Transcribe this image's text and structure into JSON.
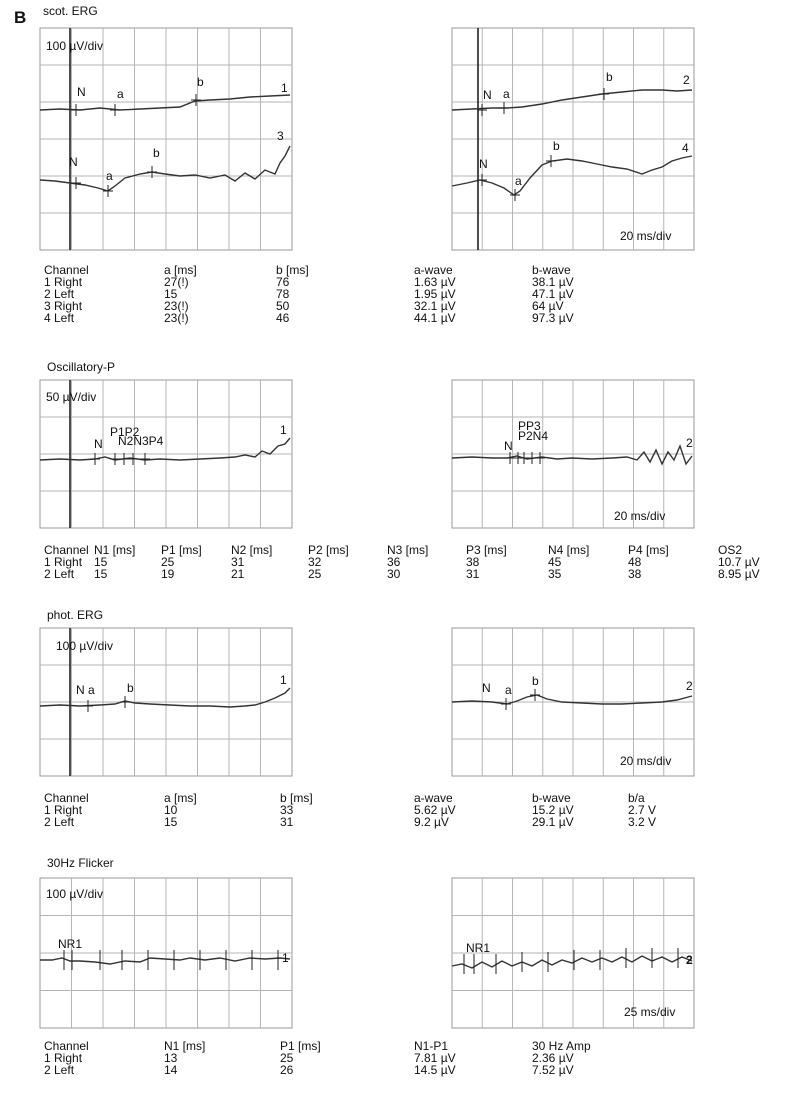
{
  "figure": {
    "panel_label": "B"
  },
  "sections": [
    {
      "title": "scot. ERG",
      "scale_left": "100 µV/div",
      "scale_right": "20 ms/div"
    },
    {
      "title": "Oscillatory-P",
      "scale_left": "50 µV/div",
      "scale_right": "20 ms/div"
    },
    {
      "title": "phot. ERG",
      "scale_left": "100 µV/div",
      "scale_right": "20 ms/div"
    },
    {
      "title": "30Hz Flicker",
      "scale_left": "100 µV/div",
      "scale_right": "25 ms/div"
    }
  ],
  "chart_data": [
    {
      "type": "line",
      "title": "scot. ERG",
      "grid": true,
      "plots": [
        {
          "side": "left",
          "traces": [
            {
              "name": "1",
              "markers": [
                "N",
                "a",
                "b"
              ]
            },
            {
              "name": "3",
              "markers": [
                "N",
                "a",
                "b"
              ]
            }
          ]
        },
        {
          "side": "right",
          "traces": [
            {
              "name": "2",
              "markers": [
                "N",
                "a",
                "b"
              ]
            },
            {
              "name": "4",
              "markers": [
                "N",
                "a",
                "b"
              ]
            }
          ]
        }
      ],
      "table": {
        "columns": [
          "Channel",
          "a [ms]",
          "b [ms]",
          "a-wave",
          "b-wave"
        ],
        "rows": [
          [
            "1 Right",
            "27(!)",
            "76",
            "1.63 µV",
            "38.1 µV"
          ],
          [
            "2 Left",
            "15",
            "78",
            "1.95 µV",
            "47.1 µV"
          ],
          [
            "3 Right",
            "23(!)",
            "50",
            "32.1 µV",
            "64 µV"
          ],
          [
            "4 Left",
            "23(!)",
            "46",
            "44.1 µV",
            "97.3 µV"
          ]
        ]
      }
    },
    {
      "type": "line",
      "title": "Oscillatory-P",
      "grid": true,
      "plots": [
        {
          "side": "left",
          "traces": [
            {
              "name": "1",
              "markers": [
                "N",
                "P1",
                "N2",
                "P2",
                "N3",
                "P3",
                "N4",
                "P4"
              ]
            }
          ]
        },
        {
          "side": "right",
          "traces": [
            {
              "name": "2",
              "markers": [
                "N",
                "P1",
                "N2",
                "P2",
                "N3",
                "P3",
                "N4",
                "P4"
              ]
            }
          ]
        }
      ],
      "table": {
        "columns": [
          "Channel",
          "N1 [ms]",
          "P1 [ms]",
          "N2 [ms]",
          "P2 [ms]",
          "N3 [ms]",
          "P3 [ms]",
          "N4 [ms]",
          "P4 [ms]",
          "OS2"
        ],
        "rows": [
          [
            "1 Right",
            "15",
            "25",
            "31",
            "32",
            "36",
            "38",
            "45",
            "48",
            "10.7  µV"
          ],
          [
            "2 Left",
            "15",
            "19",
            "21",
            "25",
            "30",
            "31",
            "35",
            "38",
            "8.95 µV"
          ]
        ]
      }
    },
    {
      "type": "line",
      "title": "phot. ERG",
      "grid": true,
      "plots": [
        {
          "side": "left",
          "traces": [
            {
              "name": "1",
              "markers": [
                "N",
                "a",
                "b"
              ]
            }
          ]
        },
        {
          "side": "right",
          "traces": [
            {
              "name": "2",
              "markers": [
                "N",
                "a",
                "b"
              ]
            }
          ]
        }
      ],
      "table": {
        "columns": [
          "Channel",
          "a [ms]",
          "b [ms]",
          "a-wave",
          "b-wave",
          "b/a"
        ],
        "rows": [
          [
            "1 Right",
            "10",
            "33",
            "5.62 µV",
            "15.2 µV",
            "2.7 V"
          ],
          [
            "2 Left",
            "15",
            "31",
            "9.2 µV",
            "29.1 µV",
            "3.2 V"
          ]
        ]
      }
    },
    {
      "type": "line",
      "title": "30Hz Flicker",
      "grid": true,
      "plots": [
        {
          "side": "left",
          "traces": [
            {
              "name": "1",
              "markers": [
                "N",
                "P1"
              ]
            }
          ]
        },
        {
          "side": "right",
          "traces": [
            {
              "name": "2",
              "markers": [
                "N",
                "P1"
              ]
            }
          ]
        }
      ],
      "table": {
        "columns": [
          "Channel",
          "N1 [ms]",
          "P1 [ms]",
          "N1-P1",
          "30 Hz Amp"
        ],
        "rows": [
          [
            "1 Right",
            "13",
            "25",
            "7.81 µV",
            "2.36 µV"
          ],
          [
            "2 Left",
            "14",
            "26",
            "14.5 µV",
            "7.52 µV"
          ]
        ]
      }
    }
  ]
}
